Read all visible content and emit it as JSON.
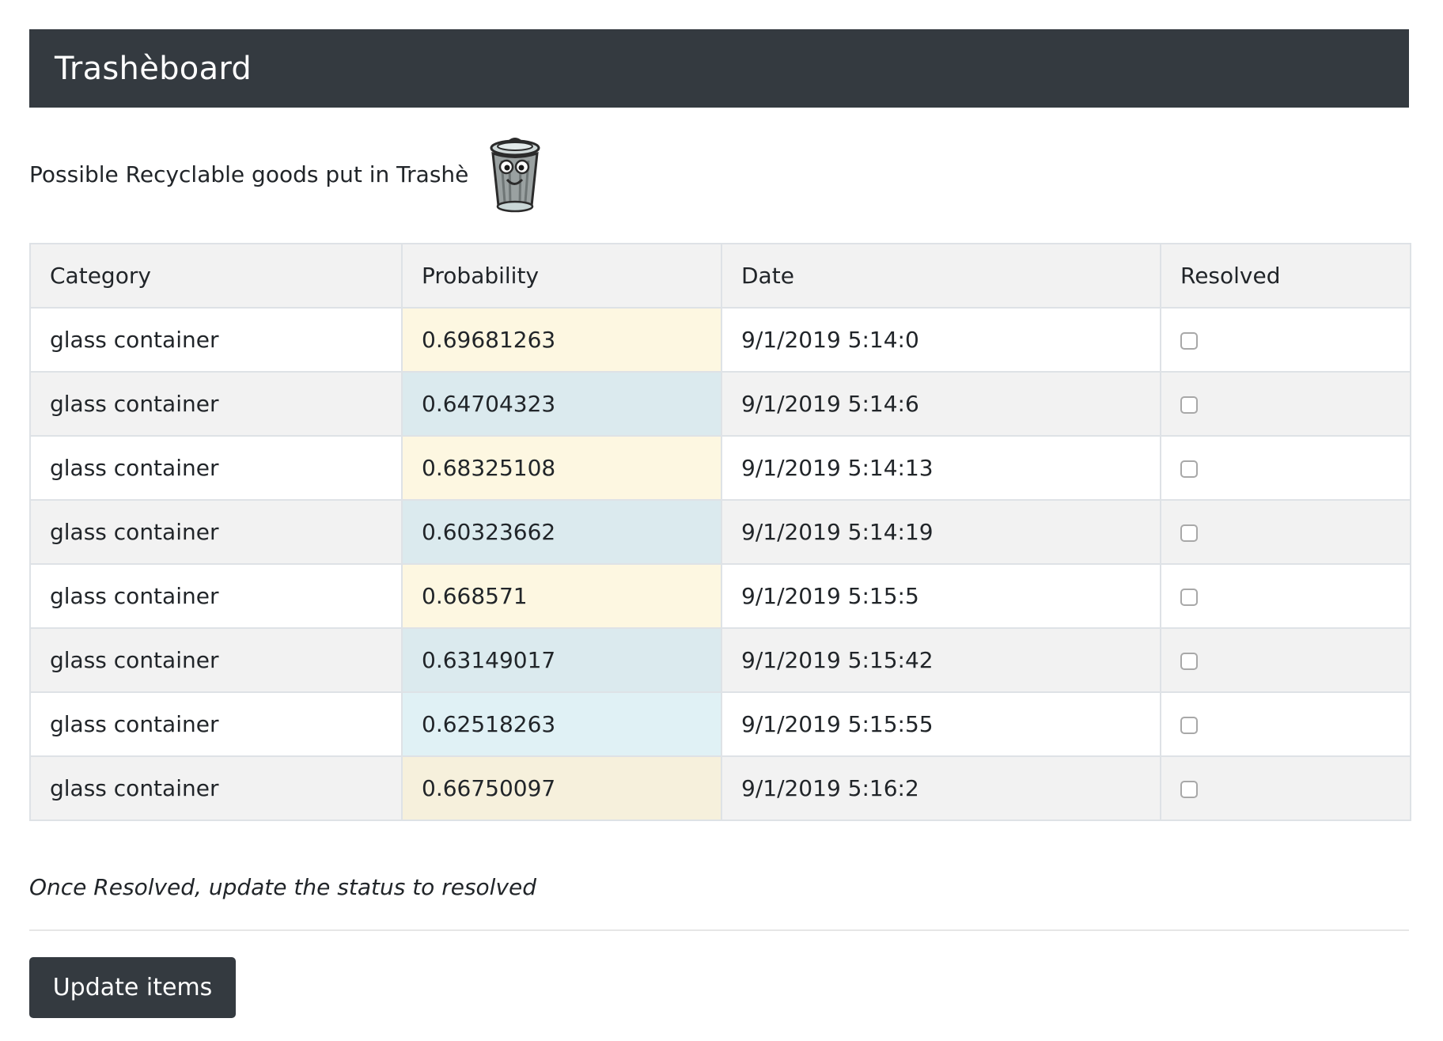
{
  "navbar": {
    "brand": "Trashèboard"
  },
  "intro": {
    "text": "Possible Recyclable goods put in Trashè",
    "mascot_icon": "trash-can-mascot-icon"
  },
  "table": {
    "headers": [
      "Category",
      "Probability",
      "Date",
      "Resolved"
    ],
    "rows": [
      {
        "category": "glass container",
        "probability": "0.69681263",
        "date": "9/1/2019 5:14:0",
        "resolved": false,
        "probability_tint": "#fdf7e1"
      },
      {
        "category": "glass container",
        "probability": "0.64704323",
        "date": "9/1/2019 5:14:6",
        "resolved": false,
        "probability_tint": "#dbeaee"
      },
      {
        "category": "glass container",
        "probability": "0.68325108",
        "date": "9/1/2019 5:14:13",
        "resolved": false,
        "probability_tint": "#fdf7e1"
      },
      {
        "category": "glass container",
        "probability": "0.60323662",
        "date": "9/1/2019 5:14:19",
        "resolved": false,
        "probability_tint": "#dbeaee"
      },
      {
        "category": "glass container",
        "probability": "0.668571",
        "date": "9/1/2019 5:15:5",
        "resolved": false,
        "probability_tint": "#fdf7e1"
      },
      {
        "category": "glass container",
        "probability": "0.63149017",
        "date": "9/1/2019 5:15:42",
        "resolved": false,
        "probability_tint": "#dbeaee"
      },
      {
        "category": "glass container",
        "probability": "0.62518263",
        "date": "9/1/2019 5:15:55",
        "resolved": false,
        "probability_tint": "#e0f1f5"
      },
      {
        "category": "glass container",
        "probability": "0.66750097",
        "date": "9/1/2019 5:16:2",
        "resolved": false,
        "probability_tint": "#f6f0dc"
      }
    ]
  },
  "footer": {
    "note": "Once Resolved, update the status to resolved",
    "update_label": "Update items"
  },
  "colors": {
    "navbar_bg": "#343a40",
    "button_bg": "#343a40",
    "header_bg": "#f2f2f2",
    "border": "#dee2e6"
  }
}
